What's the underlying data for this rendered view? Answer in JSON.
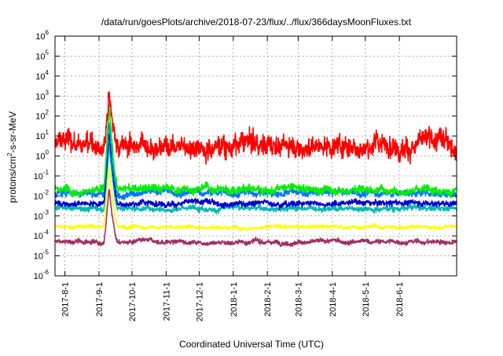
{
  "chart_data": {
    "type": "line",
    "title": "/data/run/goesPlots/archive/2018-07-23/flux/../flux/366daysMoonFluxes.txt",
    "xlabel": "Coordinated Universal Time (UTC)",
    "ylabel_parts": [
      "protons/cm",
      "2",
      "-s-sr-MeV"
    ],
    "yscale": "log",
    "ylim_exp": [
      -6,
      6
    ],
    "y_tick_exponents": [
      -6,
      -5,
      -4,
      -3,
      -2,
      -1,
      0,
      1,
      2,
      3,
      4,
      5,
      6
    ],
    "y_tick_base": "10",
    "x_range": [
      "2017-07-23",
      "2018-07-23"
    ],
    "x_tick_labels": [
      "2017-8-1",
      "2017-9-1",
      "2017-10-1",
      "2017-11-1",
      "2017-12-1",
      "2018-1-1",
      "2018-2-1",
      "2018-3-1",
      "2018-4-1",
      "2018-5-1",
      "2018-6-1"
    ],
    "x_tick_dates": [
      "2017-08-01",
      "2017-09-01",
      "2017-10-01",
      "2017-11-01",
      "2017-12-01",
      "2018-01-01",
      "2018-02-01",
      "2018-03-01",
      "2018-04-01",
      "2018-05-01",
      "2018-06-01"
    ],
    "grid": true,
    "event": {
      "start": "2017-09-05",
      "peak": "2017-09-10",
      "end": "2017-09-18"
    },
    "series": [
      {
        "color": "#ff0000",
        "baseline_log10": 0.6,
        "spread": 0.45,
        "peak_log10": 3.4
      },
      {
        "color": "#00ee00",
        "baseline_log10": -1.65,
        "spread": 0.18,
        "peak_log10": 2.4
      },
      {
        "color": "#0077ff",
        "baseline_log10": -1.85,
        "spread": 0.15,
        "peak_log10": 1.8
      },
      {
        "color": "#0000cc",
        "baseline_log10": -2.35,
        "spread": 0.12,
        "peak_log10": 1.3
      },
      {
        "color": "#00b8b0",
        "baseline_log10": -2.6,
        "spread": 0.12,
        "peak_log10": 0.7
      },
      {
        "color": "#ffff00",
        "baseline_log10": -3.55,
        "spread": 0.08,
        "peak_log10": -0.5
      },
      {
        "color": "#a03060",
        "baseline_log10": -4.3,
        "spread": 0.1,
        "peak_log10": -1.5
      }
    ]
  }
}
